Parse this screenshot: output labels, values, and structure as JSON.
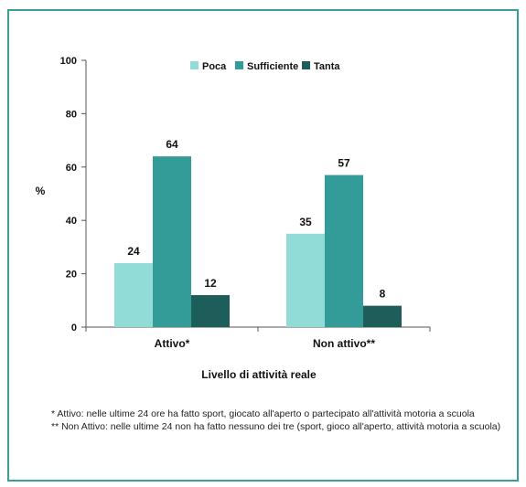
{
  "chart_data": {
    "type": "bar",
    "title": "",
    "xlabel": "Livello di attività reale",
    "ylabel": "%",
    "ylim": [
      0,
      100
    ],
    "yticks": [
      0,
      20,
      40,
      60,
      80,
      100
    ],
    "grid": false,
    "legend_position": "top",
    "categories": [
      "Attivo*",
      "Non attivo**"
    ],
    "series": [
      {
        "name": "Poca",
        "color": "#92dcd8",
        "values": [
          24,
          35
        ]
      },
      {
        "name": "Sufficiente",
        "color": "#349c98",
        "values": [
          64,
          57
        ]
      },
      {
        "name": "Tanta",
        "color": "#1e5e5a",
        "values": [
          12,
          8
        ]
      }
    ]
  },
  "footnotes": {
    "note1": "* Attivo: nelle ultime 24 ore ha fatto sport, giocato all'aperto o partecipato all'attività motoria a scuola",
    "note2": "** Non Attivo: nelle ultime 24 non ha fatto nessuno dei tre (sport, gioco all'aperto, attività motoria a scuola)"
  }
}
